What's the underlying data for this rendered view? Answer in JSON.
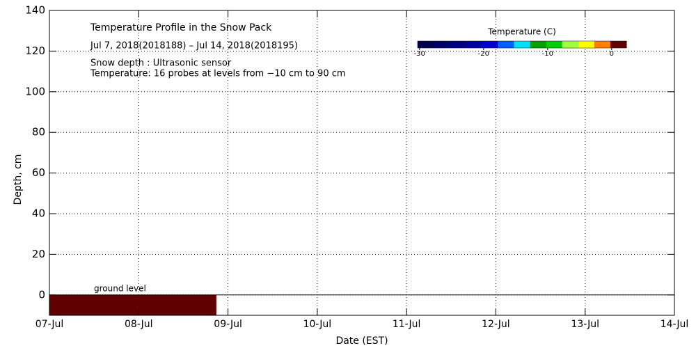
{
  "chart_data": {
    "type": "heatmap",
    "title": "Temperature Profile in the Snow Pack",
    "subtitle": "Jul  7, 2018(2018188) – Jul 14, 2018(2018195)",
    "notes": [
      "Snow depth : Ultrasonic sensor",
      "Temperature: 16 probes at levels from −10 cm to 90 cm"
    ],
    "x_label": "Date (EST)",
    "y_label": "Depth, cm",
    "xlim": [
      0,
      7
    ],
    "xticks": [
      {
        "value": 0,
        "label": "07-Jul"
      },
      {
        "value": 1,
        "label": "08-Jul"
      },
      {
        "value": 2,
        "label": "09-Jul"
      },
      {
        "value": 3,
        "label": "10-Jul"
      },
      {
        "value": 4,
        "label": "11-Jul"
      },
      {
        "value": 5,
        "label": "12-Jul"
      },
      {
        "value": 6,
        "label": "13-Jul"
      },
      {
        "value": 7,
        "label": "14-Jul"
      }
    ],
    "ylim": [
      -10,
      140
    ],
    "yticks": [
      0,
      20,
      40,
      60,
      80,
      100,
      120,
      140
    ],
    "grid": true,
    "ground_level": 0,
    "ground_label": "ground level",
    "cells": [
      {
        "x": [
          0,
          1.87
        ],
        "y": [
          -10,
          0
        ],
        "value": 2
      }
    ],
    "colorbar": {
      "label": "Temperature (C)",
      "clim": [
        -30.3,
        2.3
      ],
      "ticks": [
        -30,
        -20,
        -10,
        0
      ],
      "colors": [
        "#000050",
        "#000068",
        "#000080",
        "#0000a0",
        "#0000d0",
        "#0060ff",
        "#00e0ff",
        "#00a000",
        "#00d000",
        "#a0ff40",
        "#ffff00",
        "#ff8000",
        "#600000"
      ]
    }
  }
}
